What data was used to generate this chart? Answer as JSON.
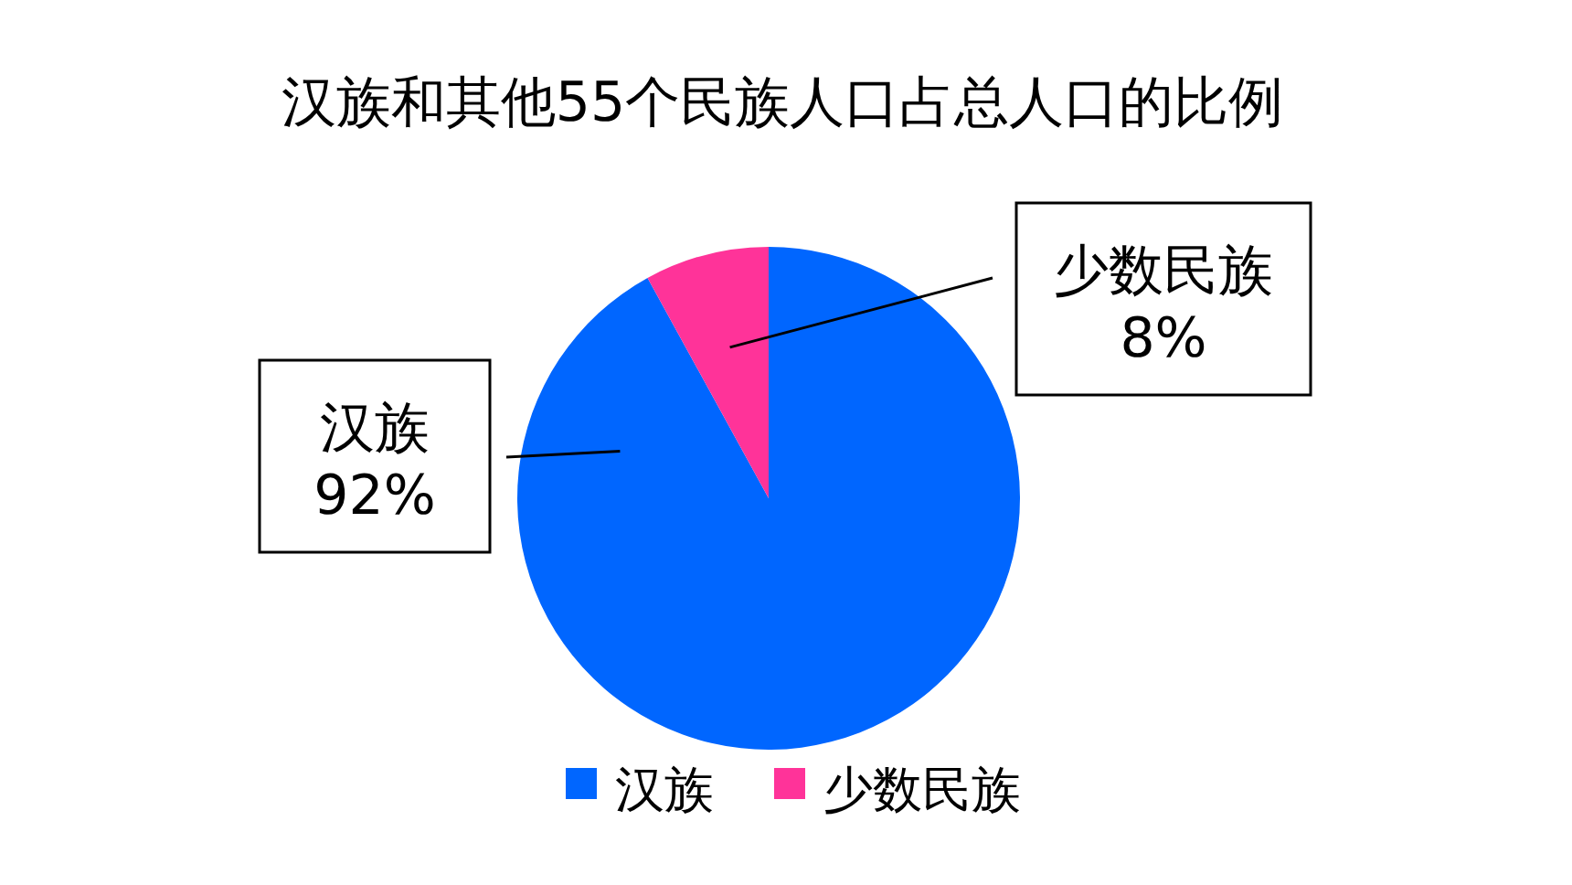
{
  "chart_data": {
    "type": "pie",
    "title": "汉族和其他55个民族人口占总人口的比例",
    "categories": [
      "汉族",
      "少数民族"
    ],
    "values": [
      92,
      8
    ],
    "colors": [
      "#0066ff",
      "#ff3399"
    ],
    "value_labels": [
      "92%",
      "8%"
    ],
    "legend": "bottom"
  }
}
